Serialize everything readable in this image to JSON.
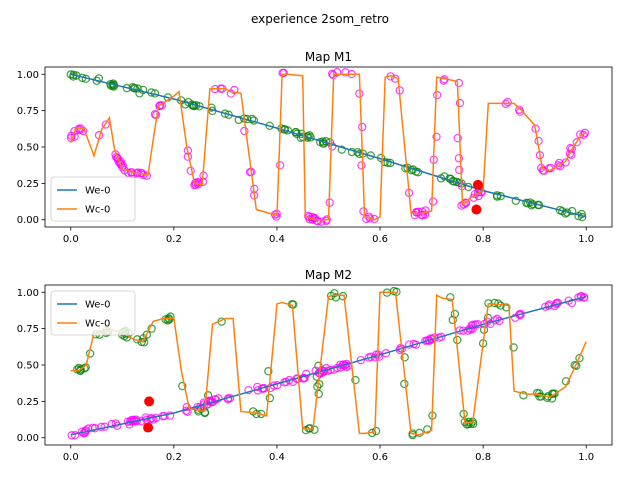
{
  "figure": {
    "suptitle": "experience 2som_retro"
  },
  "chart_data": [
    {
      "type": "line",
      "title": "Map M1",
      "xlabel": "",
      "ylabel": "",
      "xlim": [
        -0.05,
        1.05
      ],
      "ylim": [
        -0.05,
        1.05
      ],
      "xticks": [
        0.0,
        0.2,
        0.4,
        0.6,
        0.8,
        1.0
      ],
      "xtick_labels": [
        "0.0",
        "0.2",
        "0.4",
        "0.6",
        "0.8",
        "1.0"
      ],
      "yticks": [
        0.0,
        0.25,
        0.5,
        0.75,
        1.0
      ],
      "ytick_labels": [
        "0.00",
        "0.25",
        "0.50",
        "0.75",
        "1.00"
      ],
      "legend_position": "lower-left",
      "series": [
        {
          "name": "We-0",
          "color": "#1f77b4",
          "x": [
            0.0,
            0.2,
            0.4,
            0.6,
            0.8,
            1.0
          ],
          "y": [
            1.0,
            0.83,
            0.63,
            0.42,
            0.2,
            0.02
          ]
        },
        {
          "name": "Wc-0",
          "color": "#ff7f0e",
          "x": [
            0.0,
            0.01,
            0.025,
            0.045,
            0.06,
            0.075,
            0.085,
            0.1,
            0.125,
            0.15,
            0.16,
            0.17,
            0.2,
            0.21,
            0.225,
            0.24,
            0.255,
            0.27,
            0.3,
            0.31,
            0.33,
            0.36,
            0.38,
            0.4,
            0.41,
            0.42,
            0.45,
            0.455,
            0.475,
            0.5,
            0.51,
            0.53,
            0.56,
            0.57,
            0.59,
            0.6,
            0.61,
            0.62,
            0.635,
            0.66,
            0.675,
            0.7,
            0.71,
            0.725,
            0.75,
            0.76,
            0.775,
            0.8,
            0.81,
            0.82,
            0.86,
            0.875,
            0.9,
            0.915,
            0.93,
            0.96,
            0.975,
            0.99,
            1.0
          ],
          "y": [
            0.53,
            0.63,
            0.63,
            0.44,
            0.62,
            0.7,
            0.48,
            0.35,
            0.32,
            0.31,
            0.55,
            0.78,
            0.85,
            0.88,
            0.5,
            0.25,
            0.24,
            0.9,
            0.9,
            0.88,
            0.87,
            0.07,
            0.05,
            0.03,
            1.0,
            1.0,
            0.99,
            0.02,
            0.0,
            0.0,
            1.0,
            1.0,
            1.0,
            0.02,
            0.0,
            0.02,
            0.98,
            0.99,
            0.97,
            0.05,
            0.04,
            0.06,
            0.98,
            0.97,
            0.95,
            0.1,
            0.15,
            0.2,
            0.8,
            0.8,
            0.8,
            0.75,
            0.65,
            0.35,
            0.34,
            0.4,
            0.5,
            0.58,
            0.6
          ]
        }
      ]
    },
    {
      "type": "line",
      "title": "Map M2",
      "xlabel": "",
      "ylabel": "",
      "xlim": [
        -0.05,
        1.05
      ],
      "ylim": [
        -0.05,
        1.05
      ],
      "xticks": [
        0.0,
        0.2,
        0.4,
        0.6,
        0.8,
        1.0
      ],
      "xtick_labels": [
        "0.0",
        "0.2",
        "0.4",
        "0.6",
        "0.8",
        "1.0"
      ],
      "yticks": [
        0.0,
        0.25,
        0.5,
        0.75,
        1.0
      ],
      "ytick_labels": [
        "0.00",
        "0.25",
        "0.50",
        "0.75",
        "1.00"
      ],
      "legend_position": "upper-left",
      "series": [
        {
          "name": "We-0",
          "color": "#1f77b4",
          "x": [
            0.0,
            0.2,
            0.4,
            0.6,
            0.8,
            1.0
          ],
          "y": [
            0.02,
            0.17,
            0.37,
            0.57,
            0.78,
            0.97
          ]
        },
        {
          "name": "Wc-0",
          "color": "#ff7f0e",
          "x": [
            0.0,
            0.015,
            0.03,
            0.045,
            0.06,
            0.08,
            0.1,
            0.12,
            0.14,
            0.16,
            0.18,
            0.2,
            0.215,
            0.23,
            0.26,
            0.275,
            0.3,
            0.315,
            0.33,
            0.36,
            0.38,
            0.4,
            0.41,
            0.43,
            0.45,
            0.46,
            0.47,
            0.5,
            0.51,
            0.53,
            0.56,
            0.57,
            0.59,
            0.6,
            0.61,
            0.63,
            0.66,
            0.675,
            0.7,
            0.71,
            0.72,
            0.74,
            0.765,
            0.78,
            0.81,
            0.815,
            0.85,
            0.86,
            0.885,
            0.9,
            0.93,
            0.96,
            0.98,
            1.0
          ],
          "y": [
            0.46,
            0.46,
            0.5,
            0.72,
            0.72,
            0.74,
            0.73,
            0.68,
            0.66,
            0.8,
            0.82,
            0.82,
            0.45,
            0.2,
            0.18,
            0.78,
            0.82,
            0.82,
            0.18,
            0.17,
            0.15,
            0.92,
            0.93,
            0.91,
            0.06,
            0.06,
            0.06,
            0.97,
            0.98,
            0.98,
            0.03,
            0.03,
            0.04,
            1.0,
            1.0,
            1.0,
            0.03,
            0.02,
            0.05,
            0.98,
            0.96,
            0.95,
            0.1,
            0.11,
            0.92,
            0.92,
            0.91,
            0.32,
            0.3,
            0.3,
            0.28,
            0.35,
            0.5,
            0.66
          ]
        }
      ],
      "scatter_notes": "green and magenta circle markers trace the data; red filled markers near the current BMU"
    }
  ],
  "colors": {
    "we": "#1f77b4",
    "wc": "#ff7f0e",
    "green": "#008000",
    "magenta": "#ff00ff",
    "red": "#ff0000"
  }
}
